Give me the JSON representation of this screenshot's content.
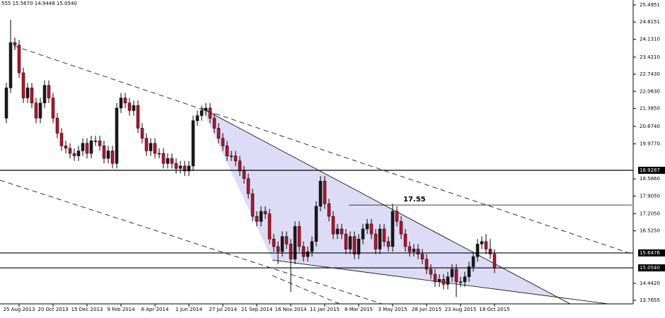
{
  "chart_data": {
    "type": "candlestick",
    "title": "555 15.5670 14.9448 15.0540",
    "categories": [
      null,
      null,
      null,
      "25 Aug 2013",
      null,
      null,
      null,
      null,
      null,
      null,
      null,
      "20 Oct 2013",
      null,
      null,
      null,
      null,
      null,
      null,
      null,
      "15 Dec 2013",
      null,
      null,
      null,
      null,
      null,
      null,
      null,
      "9 Feb 2014",
      null,
      null,
      null,
      null,
      null,
      null,
      null,
      "6 Apr 2014",
      null,
      null,
      null,
      null,
      null,
      null,
      null,
      "1 Jun 2014",
      null,
      null,
      null,
      null,
      null,
      null,
      null,
      "27 Jul 2014",
      null,
      null,
      null,
      null,
      null,
      null,
      null,
      "21 Sep 2014",
      null,
      null,
      null,
      null,
      null,
      null,
      null,
      "16 Nov 2014",
      null,
      null,
      null,
      null,
      null,
      null,
      null,
      "11 Jan 2015",
      null,
      null,
      null,
      null,
      null,
      null,
      null,
      "8 Mar 2015",
      null,
      null,
      null,
      null,
      null,
      null,
      null,
      "3 May 2015",
      null,
      null,
      null,
      null,
      null,
      null,
      null,
      "28 Jun 2015",
      null,
      null,
      null,
      null,
      null,
      null,
      null,
      "23 Aug 2015",
      null,
      null,
      null,
      null,
      null,
      null,
      null,
      "18 Oct 2015"
    ],
    "open": [
      21.0,
      22.2,
      24.0,
      23.9,
      22.8,
      21.8,
      22.2,
      21.6,
      21.0,
      21.6,
      22.3,
      21.8,
      21.0,
      20.4,
      19.9,
      19.8,
      19.6,
      19.5,
      19.7,
      20.0,
      19.6,
      20.1,
      20.1,
      19.9,
      19.4,
      19.7,
      19.2,
      21.4,
      21.8,
      21.6,
      21.3,
      21.5,
      20.6,
      20.2,
      19.7,
      20.0,
      19.6,
      19.6,
      19.2,
      19.4,
      19.2,
      19.0,
      19.1,
      18.9,
      19.1,
      20.9,
      21.1,
      21.3,
      21.4,
      21.0,
      20.6,
      20.2,
      19.9,
      19.5,
      19.5,
      19.3,
      18.9,
      18.6,
      18.0,
      17.1,
      16.9,
      17.3,
      17.2,
      16.2,
      15.9,
      15.7,
      16.3,
      16.0,
      15.4,
      16.7,
      15.9,
      15.5,
      15.7,
      16.1,
      17.5,
      18.5,
      17.6,
      17.1,
      16.4,
      16.6,
      16.4,
      15.8,
      16.3,
      15.6,
      16.2,
      16.6,
      16.8,
      16.4,
      15.8,
      16.6,
      16.1,
      15.9,
      17.3,
      16.9,
      16.4,
      15.9,
      15.7,
      15.8,
      15.6,
      15.4,
      15.0,
      14.8,
      14.5,
      14.6,
      14.4,
      14.7,
      15.0,
      14.5,
      14.5,
      14.7,
      15.1,
      15.5,
      16.0,
      16.1,
      15.8,
      15.6
    ],
    "high": [
      22.4,
      24.9,
      24.2,
      24.1,
      23.0,
      22.4,
      22.4,
      21.8,
      21.8,
      22.5,
      22.5,
      22.0,
      21.2,
      20.6,
      20.1,
      20.0,
      19.8,
      19.9,
      20.2,
      20.2,
      20.3,
      20.3,
      20.3,
      20.1,
      19.9,
      19.9,
      21.6,
      22.0,
      22.0,
      21.8,
      21.7,
      21.7,
      20.8,
      20.4,
      20.2,
      20.2,
      19.8,
      19.8,
      19.6,
      19.6,
      19.4,
      19.3,
      19.3,
      19.3,
      21.1,
      21.3,
      21.5,
      21.6,
      21.6,
      21.2,
      20.8,
      20.4,
      20.1,
      19.7,
      19.7,
      19.5,
      19.1,
      18.8,
      18.2,
      17.3,
      17.5,
      17.5,
      17.4,
      16.4,
      16.1,
      16.5,
      16.5,
      16.2,
      16.9,
      16.9,
      16.1,
      15.9,
      16.3,
      17.7,
      18.7,
      18.7,
      17.8,
      17.3,
      16.8,
      16.8,
      16.6,
      16.5,
      16.5,
      16.4,
      16.8,
      17.0,
      17.0,
      16.6,
      16.8,
      16.8,
      16.3,
      17.6,
      17.5,
      17.1,
      16.6,
      16.1,
      16.0,
      16.0,
      15.8,
      15.6,
      15.2,
      15.0,
      14.8,
      14.8,
      14.9,
      15.2,
      15.2,
      14.7,
      14.9,
      15.3,
      15.7,
      16.2,
      16.3,
      16.4,
      16.2,
      15.8
    ],
    "low": [
      20.8,
      22.0,
      23.7,
      22.6,
      21.6,
      21.6,
      21.4,
      20.8,
      20.8,
      21.4,
      21.6,
      20.8,
      20.2,
      19.7,
      19.6,
      19.4,
      19.3,
      19.3,
      19.5,
      19.4,
      19.4,
      19.9,
      19.7,
      19.2,
      19.2,
      19.0,
      19.0,
      21.2,
      21.4,
      21.1,
      21.1,
      20.4,
      20.0,
      19.5,
      19.5,
      19.4,
      19.4,
      19.0,
      19.0,
      19.0,
      18.8,
      18.8,
      18.7,
      18.7,
      18.9,
      20.7,
      20.9,
      21.1,
      20.8,
      20.4,
      20.0,
      19.7,
      19.3,
      19.3,
      19.1,
      18.7,
      18.4,
      17.8,
      16.9,
      16.7,
      16.7,
      17.0,
      16.0,
      15.7,
      15.2,
      15.5,
      15.8,
      14.1,
      15.2,
      15.7,
      15.3,
      15.3,
      15.5,
      15.9,
      17.3,
      17.4,
      16.9,
      16.2,
      16.2,
      16.2,
      15.6,
      15.6,
      15.4,
      15.4,
      16.0,
      16.4,
      16.2,
      15.6,
      15.6,
      15.9,
      15.7,
      15.7,
      16.7,
      16.2,
      15.7,
      15.5,
      15.5,
      15.4,
      15.2,
      14.8,
      14.6,
      14.3,
      14.3,
      14.2,
      14.2,
      14.5,
      13.9,
      14.3,
      14.3,
      14.5,
      14.9,
      15.3,
      15.8,
      15.6,
      15.4,
      14.85
    ],
    "close": [
      22.2,
      24.0,
      23.9,
      22.8,
      21.8,
      22.2,
      21.6,
      21.0,
      21.6,
      22.3,
      21.8,
      21.0,
      20.4,
      19.9,
      19.8,
      19.6,
      19.5,
      19.7,
      20.0,
      19.6,
      20.1,
      20.1,
      19.9,
      19.4,
      19.7,
      19.2,
      21.4,
      21.8,
      21.6,
      21.3,
      21.5,
      20.6,
      20.2,
      19.7,
      20.0,
      19.6,
      19.6,
      19.2,
      19.4,
      19.2,
      19.0,
      19.1,
      18.9,
      19.1,
      20.9,
      21.1,
      21.3,
      21.4,
      21.0,
      20.6,
      20.2,
      19.9,
      19.5,
      19.5,
      19.3,
      18.9,
      18.6,
      18.0,
      17.1,
      16.9,
      17.3,
      17.2,
      16.2,
      15.9,
      15.7,
      16.3,
      16.0,
      15.4,
      16.7,
      15.9,
      15.5,
      15.7,
      16.1,
      17.5,
      18.5,
      17.6,
      17.1,
      16.4,
      16.6,
      16.4,
      15.8,
      16.3,
      15.6,
      16.2,
      16.6,
      16.8,
      16.4,
      15.8,
      16.6,
      16.1,
      15.9,
      17.3,
      16.9,
      16.4,
      15.9,
      15.7,
      15.8,
      15.6,
      15.4,
      15.0,
      14.8,
      14.5,
      14.6,
      14.4,
      14.7,
      15.0,
      14.5,
      14.5,
      14.7,
      15.1,
      15.5,
      16.0,
      16.1,
      15.8,
      15.6,
      15.05
    ],
    "up_color": "#1a1a1a",
    "down_color": "#c0102a",
    "ylim": [
      13.625,
      25.69
    ],
    "yticks": [
      25.4951,
      24.8151,
      {
        "value": 24.131,
        "label": "24.1310"
      },
      {
        "value": 23.421,
        "label": "23.4210"
      },
      {
        "value": 22.743,
        "label": "22.7430"
      },
      {
        "value": 22.063,
        "label": "22.0630"
      },
      {
        "value": 21.385,
        "label": "21.3850"
      },
      {
        "value": 20.674,
        "label": "20.6740"
      },
      {
        "value": 19.977,
        "label": "19.9770"
      },
      {
        "value": 18.586,
        "label": "18.5860"
      },
      {
        "value": 17.905,
        "label": "17.9050"
      },
      {
        "value": 17.205,
        "label": "17.2050"
      },
      {
        "value": 16.525,
        "label": "16.5250"
      },
      {
        "value": 14.442,
        "label": "14.4420"
      },
      13.7655
    ],
    "hlines": [
      18.9287,
      15.6476,
      {
        "value": 15.054,
        "label": "15.0540"
      }
    ],
    "resistance": 17.55
  }
}
